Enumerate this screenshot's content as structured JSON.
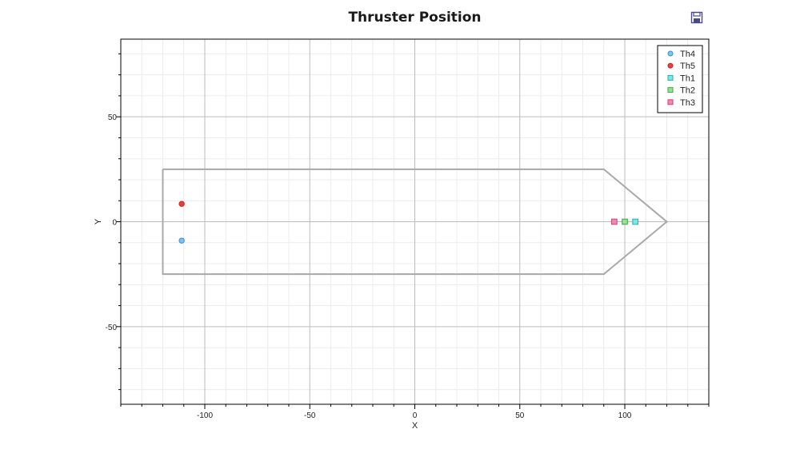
{
  "header": {
    "title": "Thruster Position",
    "save_icon": "floppy-disk-save-icon"
  },
  "chart_data": {
    "type": "scatter",
    "title": "Thruster Position",
    "xlabel": "X",
    "ylabel": "Y",
    "xlim": [
      -140,
      140
    ],
    "ylim": [
      -87,
      87
    ],
    "x_ticks": [
      -100,
      -50,
      0,
      50,
      100
    ],
    "y_ticks": [
      -50,
      0,
      50
    ],
    "x_tick_labels": [
      "-100",
      "-50",
      "0",
      "50",
      "100"
    ],
    "y_tick_labels": [
      "-50",
      "0",
      "50"
    ],
    "grid": true,
    "legend_position": "top-right",
    "hull_outline": {
      "color": "#a8a8a8",
      "points": [
        [
          -120,
          25
        ],
        [
          90,
          25
        ],
        [
          120,
          0
        ],
        [
          90,
          -25
        ],
        [
          -120,
          -25
        ],
        [
          -120,
          25
        ]
      ]
    },
    "series": [
      {
        "name": "Th4",
        "marker": "circle",
        "fill": "#7ec3f2",
        "stroke": "#3a8fcf",
        "points": [
          [
            -111,
            -9
          ]
        ]
      },
      {
        "name": "Th5",
        "marker": "circle",
        "fill": "#ee3b3b",
        "stroke": "#cc2222",
        "points": [
          [
            -111,
            8.5
          ]
        ]
      },
      {
        "name": "Th1",
        "marker": "square",
        "fill": "#7fe6e6",
        "stroke": "#1fb3b3",
        "points": [
          [
            105,
            0
          ]
        ]
      },
      {
        "name": "Th2",
        "marker": "square",
        "fill": "#98df98",
        "stroke": "#3ea83e",
        "points": [
          [
            100,
            0
          ]
        ]
      },
      {
        "name": "Th3",
        "marker": "square",
        "fill": "#f08ab0",
        "stroke": "#d13d75",
        "points": [
          [
            95,
            0
          ]
        ]
      }
    ]
  }
}
